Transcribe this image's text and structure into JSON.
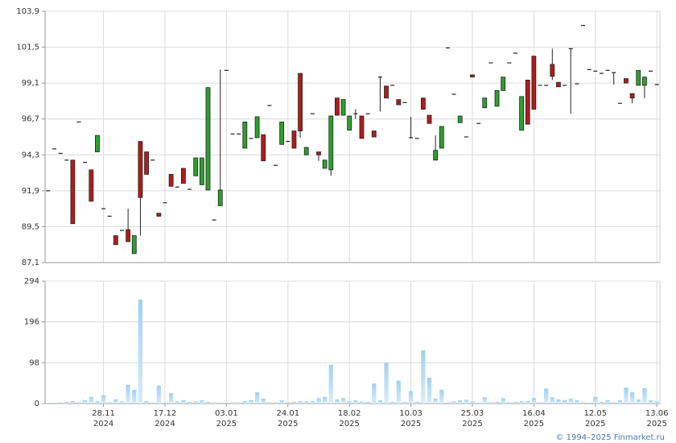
{
  "chart_data": {
    "type": "candlestick",
    "categories": [
      null,
      null,
      null,
      null,
      null,
      null,
      null,
      null,
      null,
      [
        "28.11",
        "2024"
      ],
      null,
      null,
      null,
      null,
      null,
      null,
      null,
      null,
      null,
      [
        "17.12",
        "2024"
      ],
      null,
      null,
      null,
      null,
      null,
      null,
      null,
      null,
      null,
      [
        "03.01",
        "2025"
      ],
      null,
      null,
      null,
      null,
      null,
      null,
      null,
      null,
      null,
      [
        "24.01",
        "2025"
      ],
      null,
      null,
      null,
      null,
      null,
      null,
      null,
      null,
      null,
      [
        "18.02",
        "2025"
      ],
      null,
      null,
      null,
      null,
      null,
      null,
      null,
      null,
      null,
      [
        "10.03",
        "2025"
      ],
      null,
      null,
      null,
      null,
      null,
      null,
      null,
      null,
      null,
      [
        "25.03",
        "2025"
      ],
      null,
      null,
      null,
      null,
      null,
      null,
      null,
      null,
      null,
      [
        "16.04",
        "2025"
      ],
      null,
      null,
      null,
      null,
      null,
      null,
      null,
      null,
      null,
      [
        "12.05",
        "2025"
      ],
      null,
      null,
      null,
      null,
      null,
      null,
      null,
      null,
      null,
      [
        "13.06",
        "2025"
      ]
    ],
    "open": [
      91.9,
      94.7,
      94.4,
      93.95,
      93.95,
      96.5,
      93.8,
      93.3,
      94.5,
      90.7,
      90.2,
      88.9,
      89.25,
      89.3,
      87.7,
      95.2,
      94.5,
      93.95,
      90.4,
      91.1,
      93.0,
      92.15,
      93.4,
      92.0,
      92.9,
      92.3,
      91.95,
      89.95,
      90.9,
      99.95,
      95.7,
      95.7,
      94.75,
      95.4,
      95.45,
      95.65,
      97.6,
      93.6,
      95.0,
      95.2,
      95.9,
      99.75,
      94.3,
      97.05,
      94.5,
      93.4,
      93.3,
      98.1,
      96.95,
      95.95,
      97.05,
      96.9,
      97.05,
      95.9,
      99.5,
      98.9,
      98.95,
      98.0,
      97.8,
      95.45,
      95.4,
      98.1,
      96.95,
      93.95,
      94.75,
      101.45,
      98.35,
      96.45,
      95.5,
      99.65,
      96.4,
      97.45,
      100.45,
      97.55,
      98.6,
      100.45,
      101.1,
      95.95,
      99.3,
      100.9,
      98.95,
      98.95,
      100.35,
      99.15,
      98.95,
      101.4,
      99.05,
      102.95,
      100.0,
      99.9,
      99.75,
      99.95,
      99.8,
      97.75,
      99.4,
      98.4,
      98.95,
      98.95,
      99.9,
      99.0
    ],
    "high": [
      91.9,
      94.7,
      94.4,
      93.95,
      93.95,
      96.5,
      93.8,
      93.3,
      95.6,
      90.7,
      90.2,
      88.9,
      89.25,
      90.7,
      88.9,
      95.2,
      94.5,
      93.95,
      90.4,
      91.1,
      93.0,
      92.15,
      93.4,
      92.0,
      94.1,
      94.1,
      98.8,
      89.95,
      100.0,
      99.95,
      95.7,
      95.7,
      96.5,
      95.4,
      96.85,
      95.65,
      97.6,
      93.6,
      96.5,
      95.2,
      95.9,
      99.75,
      94.8,
      97.05,
      94.5,
      93.95,
      96.9,
      98.1,
      98.0,
      96.9,
      97.35,
      96.9,
      97.05,
      95.9,
      99.55,
      98.9,
      98.95,
      98.0,
      97.8,
      96.85,
      95.4,
      98.1,
      96.95,
      95.6,
      96.2,
      101.45,
      98.35,
      96.9,
      95.5,
      99.65,
      96.4,
      98.1,
      100.45,
      98.6,
      99.5,
      100.45,
      101.1,
      98.2,
      99.3,
      100.9,
      98.95,
      98.95,
      101.4,
      99.15,
      98.95,
      101.4,
      99.05,
      102.95,
      100.0,
      99.9,
      99.75,
      99.95,
      99.8,
      97.75,
      99.4,
      98.4,
      99.95,
      99.5,
      99.9,
      99.0
    ],
    "low": [
      91.9,
      94.7,
      94.4,
      93.95,
      89.7,
      96.5,
      93.8,
      91.2,
      94.5,
      90.7,
      90.2,
      88.3,
      89.25,
      88.5,
      87.7,
      88.9,
      93.0,
      93.95,
      90.2,
      91.1,
      92.2,
      92.15,
      92.4,
      92.0,
      92.9,
      92.3,
      91.95,
      89.95,
      90.9,
      99.95,
      95.7,
      95.7,
      94.75,
      95.4,
      95.45,
      93.9,
      97.6,
      93.6,
      95.0,
      95.2,
      94.75,
      95.45,
      94.3,
      97.05,
      93.9,
      93.4,
      92.9,
      96.95,
      96.95,
      95.95,
      96.7,
      95.4,
      97.05,
      95.5,
      97.2,
      98.1,
      98.95,
      97.65,
      97.8,
      95.4,
      95.4,
      97.35,
      96.4,
      93.95,
      94.75,
      101.45,
      98.35,
      96.45,
      95.5,
      99.5,
      96.4,
      97.45,
      100.45,
      97.55,
      98.6,
      100.45,
      101.1,
      95.95,
      96.35,
      97.35,
      98.95,
      98.95,
      99.3,
      98.85,
      98.95,
      97.05,
      99.05,
      102.95,
      100.0,
      99.9,
      99.75,
      99.95,
      99.0,
      97.75,
      99.1,
      97.75,
      98.95,
      98.1,
      99.9,
      99.0
    ],
    "close": [
      91.9,
      94.7,
      94.4,
      93.95,
      89.7,
      96.5,
      93.8,
      91.2,
      95.6,
      90.7,
      90.2,
      88.3,
      89.25,
      88.5,
      88.9,
      91.45,
      93.0,
      93.95,
      90.2,
      91.1,
      92.2,
      92.15,
      92.4,
      92.0,
      94.1,
      94.1,
      98.8,
      89.95,
      91.95,
      99.95,
      95.7,
      95.7,
      96.5,
      95.4,
      96.85,
      93.9,
      97.6,
      93.6,
      96.5,
      95.2,
      94.75,
      95.9,
      94.8,
      97.05,
      94.3,
      93.95,
      96.9,
      96.95,
      98.0,
      96.9,
      97.05,
      95.4,
      97.05,
      95.5,
      99.5,
      98.1,
      98.95,
      97.65,
      97.8,
      95.45,
      95.4,
      97.35,
      96.4,
      94.6,
      96.2,
      101.45,
      98.35,
      96.9,
      95.5,
      99.5,
      96.4,
      98.1,
      100.45,
      98.6,
      99.5,
      100.45,
      101.1,
      98.2,
      96.35,
      97.35,
      98.95,
      98.95,
      99.55,
      98.85,
      98.95,
      101.4,
      99.05,
      102.95,
      100.0,
      99.9,
      99.75,
      99.95,
      99.8,
      97.75,
      99.1,
      98.1,
      99.95,
      99.5,
      99.9,
      99.0
    ],
    "volume": [
      2,
      2,
      3,
      4,
      6,
      3,
      8,
      16,
      5,
      20,
      3,
      10,
      5,
      45,
      33,
      250,
      6,
      3,
      43,
      2,
      25,
      5,
      8,
      4,
      5,
      8,
      4,
      3,
      2,
      2,
      3,
      3,
      6,
      8,
      27,
      12,
      3,
      3,
      8,
      3,
      4,
      6,
      5,
      6,
      13,
      16,
      93,
      10,
      13,
      6,
      8,
      5,
      4,
      48,
      8,
      98,
      4,
      55,
      4,
      30,
      4,
      128,
      62,
      12,
      33,
      3,
      5,
      8,
      9,
      5,
      2,
      15,
      3,
      4,
      13,
      3,
      4,
      6,
      6,
      13,
      3,
      36,
      15,
      10,
      8,
      12,
      8,
      3,
      2,
      16,
      4,
      8,
      3,
      8,
      38,
      27,
      10,
      37,
      8,
      5
    ],
    "up_color": "#2ca02c",
    "down_color": "#b01c1c",
    "volume_color": "#9fd0f4",
    "ylim": [
      87.1,
      103.9
    ],
    "yticks": [
      {
        "value": 87.1,
        "label": "87,1"
      },
      {
        "value": 89.5,
        "label": "89,5"
      },
      {
        "value": 91.9,
        "label": "91,9"
      },
      {
        "value": 94.3,
        "label": "94,3"
      },
      {
        "value": 96.7,
        "label": "96,7"
      },
      {
        "value": 99.1,
        "label": "99,1"
      },
      {
        "value": 101.5,
        "label": "101,5"
      },
      {
        "value": 103.9,
        "label": "103,9"
      }
    ],
    "volume_ylim": [
      0,
      294
    ],
    "volume_yticks": [
      0,
      98,
      196,
      294
    ],
    "grid": true,
    "footer": "© 1994–2025 Finmarket.ru"
  }
}
